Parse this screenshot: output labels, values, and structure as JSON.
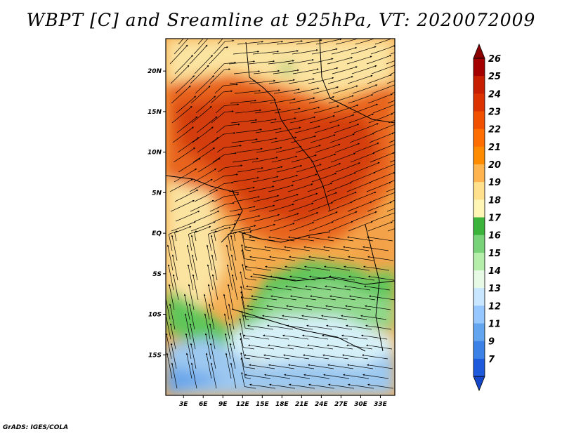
{
  "title": "WBPT [C] and Sreamline at 925hPa, VT: 2020072009",
  "credit": "GrADS: IGES/COLA",
  "lon_labels": [
    "3E",
    "6E",
    "9E",
    "12E",
    "15E",
    "18E",
    "21E",
    "24E",
    "27E",
    "30E",
    "33E"
  ],
  "lat_labels": [
    "20N",
    "15N",
    "10N",
    "5N",
    "EQ",
    "5S",
    "10S",
    "15S"
  ],
  "colorbar": {
    "labels": [
      "26",
      "25",
      "24",
      "23",
      "22",
      "21",
      "20",
      "19",
      "18",
      "17",
      "16",
      "15",
      "14",
      "13",
      "12",
      "11",
      "9",
      "7"
    ],
    "colors": [
      "#a50000",
      "#c81e00",
      "#dc3200",
      "#f05000",
      "#ff6e00",
      "#ff8c00",
      "#ffb450",
      "#ffe08c",
      "#fff5b4",
      "#3cb43c",
      "#78d278",
      "#b4eeaa",
      "#e6fae6",
      "#c8e6ff",
      "#96c8ff",
      "#64a5f0",
      "#3c82e6",
      "#1e5adc"
    ]
  },
  "map_style": {
    "field_colors": {
      "deep_red": "#d23c0a",
      "orange": "#f07820",
      "light_orange": "#f5a84a",
      "pale_yellow": "#fbe3a0",
      "green": "#5fc65a",
      "light_green": "#a8e6a0",
      "pale_blue": "#d6f0f8",
      "light_blue": "#9cc8f0",
      "blue": "#6aa6ea"
    },
    "streamline_color": "#000000",
    "border_color": "#000000"
  }
}
